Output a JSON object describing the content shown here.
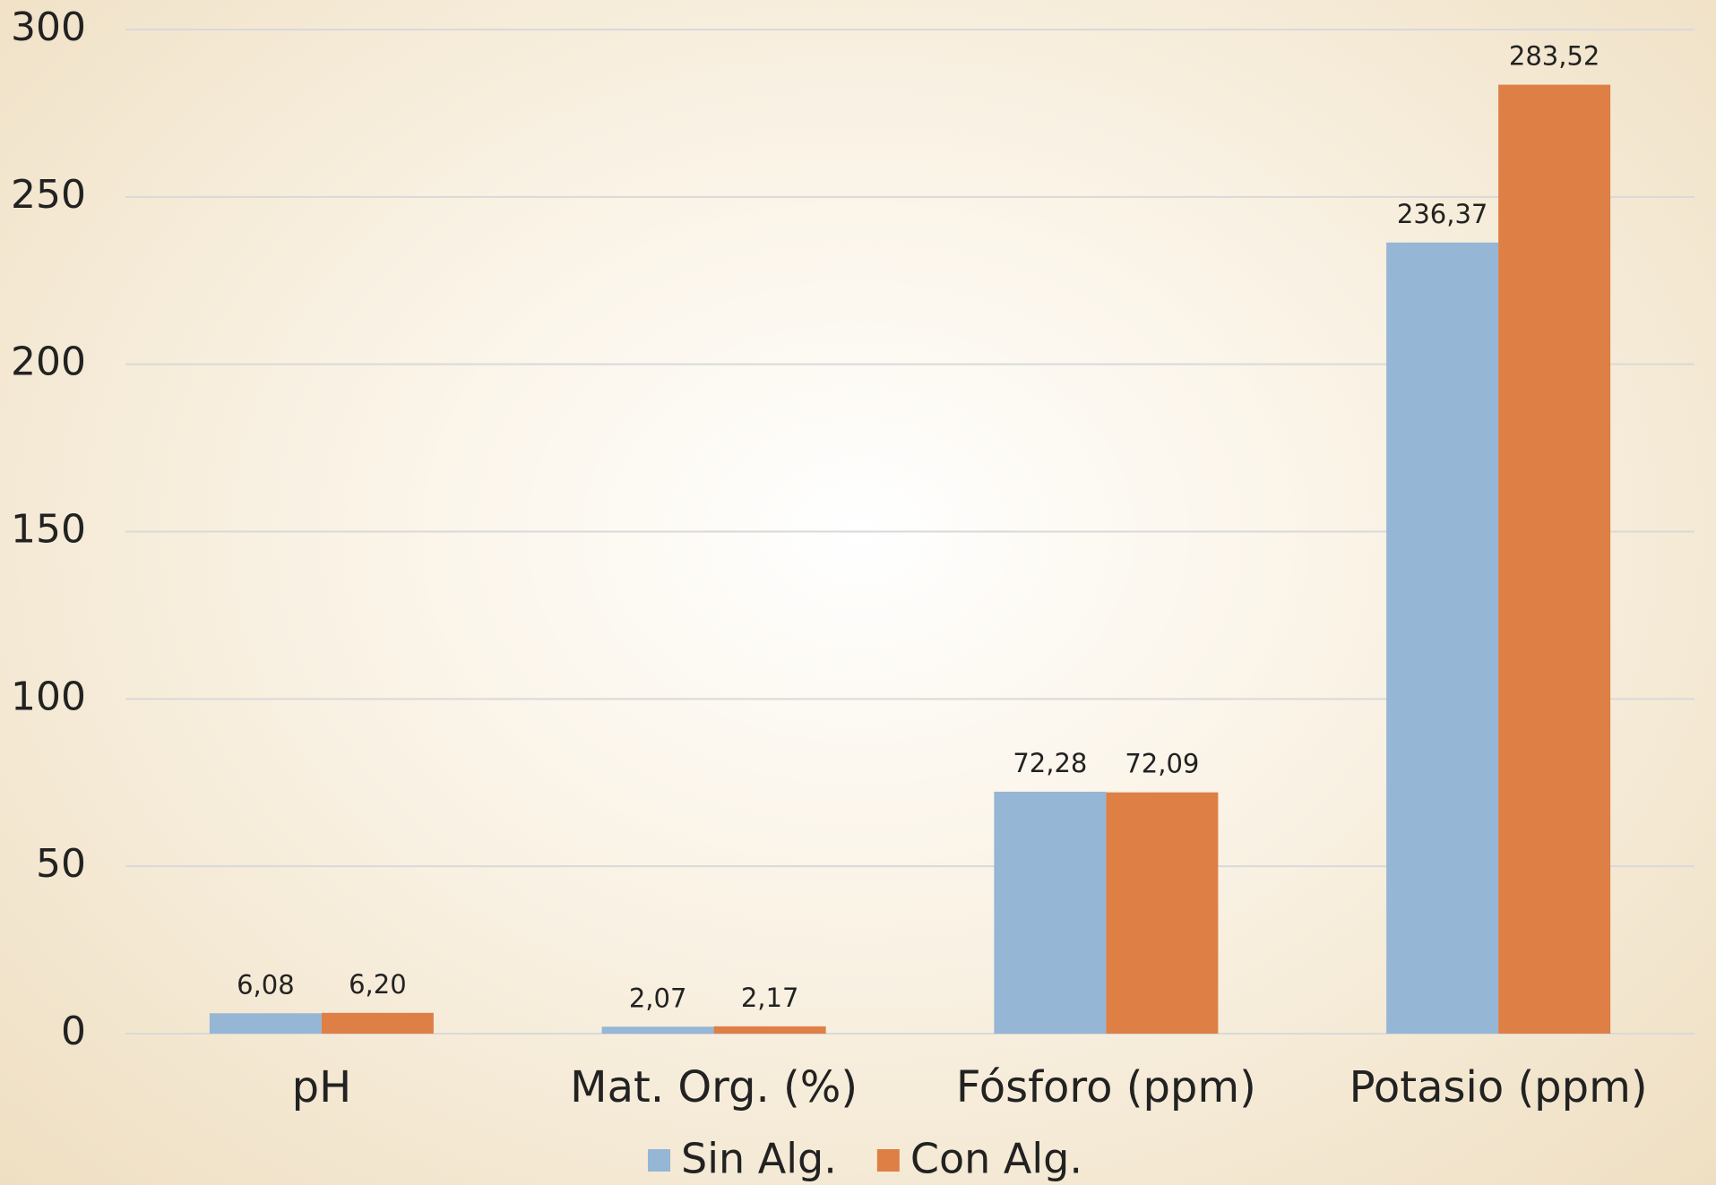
{
  "chart_data": {
    "type": "bar",
    "categories": [
      "pH",
      "Mat. Org. (%)",
      "Fósforo (ppm)",
      "Potasio (ppm)"
    ],
    "series": [
      {
        "name": "Sin Alg.",
        "color": "#95b6d4",
        "values": [
          6.08,
          2.07,
          72.28,
          236.37
        ],
        "value_labels": [
          "6,08",
          "2,07",
          "72,28",
          "236,37"
        ]
      },
      {
        "name": "Con Alg.",
        "color": "#de7f46",
        "values": [
          6.2,
          2.17,
          72.09,
          283.52
        ],
        "value_labels": [
          "6,20",
          "2,17",
          "72,09",
          "283,52"
        ]
      }
    ],
    "ylim": [
      0,
      300
    ],
    "yticks": [
      0,
      50,
      100,
      150,
      200,
      250,
      300
    ],
    "grid": true,
    "legend": "bottom"
  }
}
